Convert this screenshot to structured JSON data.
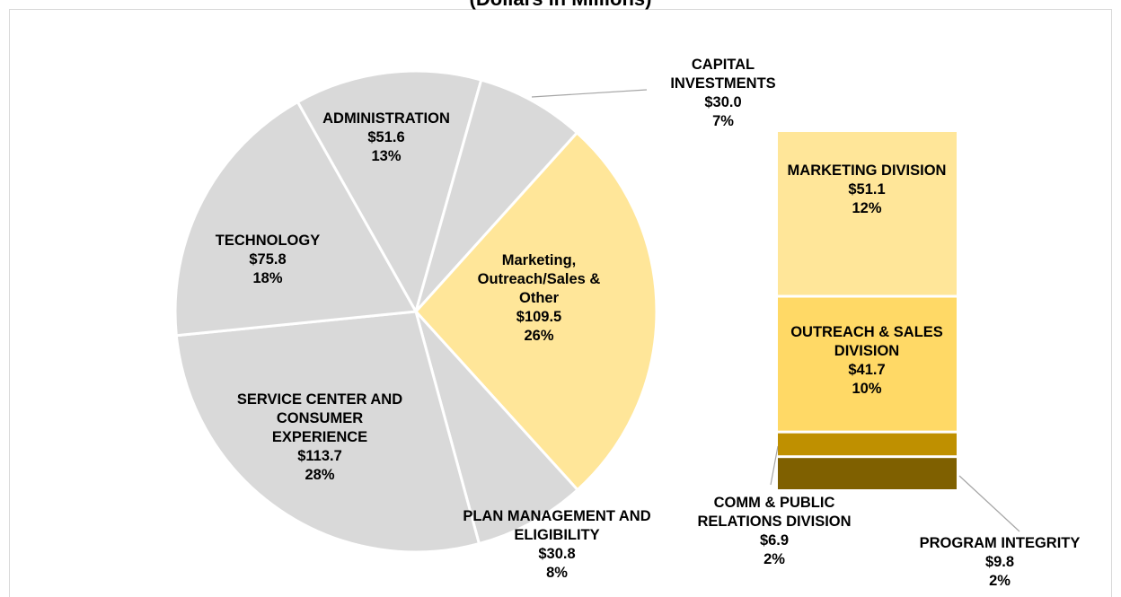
{
  "chart_data": {
    "type": "pie",
    "title": "(Dollars in Millions)",
    "categories": [
      "Marketing, Outreach/Sales & Other",
      "PLAN MANAGEMENT AND ELIGIBILITY",
      "SERVICE CENTER AND CONSUMER EXPERIENCE",
      "TECHNOLOGY",
      "ADMINISTRATION",
      "CAPITAL INVESTMENTS"
    ],
    "values": [
      109.5,
      30.8,
      113.7,
      75.8,
      51.6,
      30.0
    ],
    "value_labels": [
      "$109.5",
      "$30.8",
      "$113.7",
      "$75.8",
      "$51.6",
      "$30.0"
    ],
    "percent_labels": [
      "26%",
      "8%",
      "28%",
      "18%",
      "13%",
      "7%"
    ],
    "colors": [
      "#ffe699",
      "#d9d9d9",
      "#d9d9d9",
      "#d9d9d9",
      "#d9d9d9",
      "#d9d9d9"
    ],
    "breakdown": {
      "type": "bar",
      "categories": [
        "MARKETING DIVISION",
        "OUTREACH & SALES DIVISION",
        "COMM & PUBLIC RELATIONS DIVISION",
        "PROGRAM INTEGRITY"
      ],
      "values": [
        51.1,
        41.7,
        6.9,
        9.8
      ],
      "value_labels": [
        "$51.1",
        "$41.7",
        "$6.9",
        "$9.8"
      ],
      "percent_labels": [
        "12%",
        "10%",
        "2%",
        "2%"
      ],
      "colors": [
        "#ffe699",
        "#ffd966",
        "#bf9000",
        "#7f6000"
      ]
    }
  }
}
